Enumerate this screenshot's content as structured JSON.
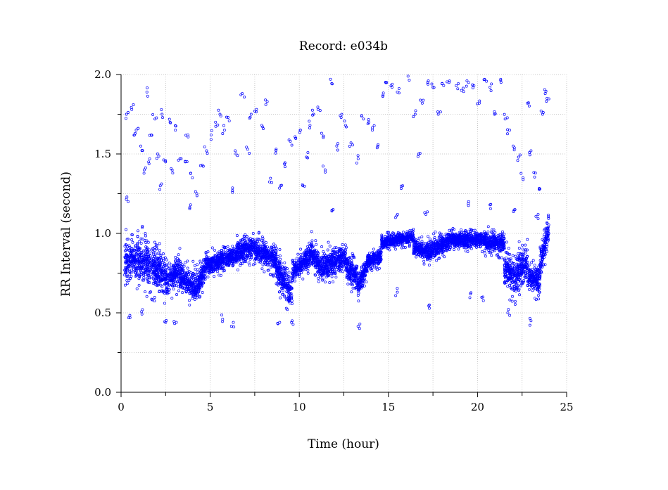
{
  "chart_data": {
    "type": "scatter",
    "title": "Record:  e034b",
    "xlabel": "Time (hour)",
    "ylabel": "RR Interval (second)",
    "xlim": [
      0,
      25
    ],
    "ylim": [
      0,
      2.0
    ],
    "x_ticks": [
      "0",
      "5",
      "10",
      "15",
      "20",
      "25"
    ],
    "y_ticks": [
      "0.0",
      "0.5",
      "1.0",
      "1.5",
      "2.0"
    ],
    "grid": true,
    "marker_color": "#0000ff",
    "segments": [
      {
        "x": [
          0.2,
          1.0
        ],
        "y": [
          0.84,
          0.84
        ],
        "spread": 0.1
      },
      {
        "x": [
          1.0,
          2.0
        ],
        "y": [
          0.84,
          0.78
        ],
        "spread": 0.11
      },
      {
        "x": [
          2.0,
          2.7
        ],
        "y": [
          0.78,
          0.7
        ],
        "spread": 0.09
      },
      {
        "x": [
          2.7,
          3.3
        ],
        "y": [
          0.72,
          0.78
        ],
        "spread": 0.08
      },
      {
        "x": [
          3.3,
          4.2
        ],
        "y": [
          0.74,
          0.66
        ],
        "spread": 0.08
      },
      {
        "x": [
          4.2,
          4.8
        ],
        "y": [
          0.66,
          0.8
        ],
        "spread": 0.07
      },
      {
        "x": [
          4.8,
          6.5
        ],
        "y": [
          0.8,
          0.86
        ],
        "spread": 0.05
      },
      {
        "x": [
          6.5,
          7.5
        ],
        "y": [
          0.88,
          0.92
        ],
        "spread": 0.06
      },
      {
        "x": [
          7.5,
          8.7
        ],
        "y": [
          0.9,
          0.84
        ],
        "spread": 0.06
      },
      {
        "x": [
          8.7,
          9.6
        ],
        "y": [
          0.78,
          0.62
        ],
        "spread": 0.08
      },
      {
        "x": [
          9.6,
          10.6
        ],
        "y": [
          0.76,
          0.86
        ],
        "spread": 0.06
      },
      {
        "x": [
          10.6,
          11.4
        ],
        "y": [
          0.9,
          0.76
        ],
        "spread": 0.07
      },
      {
        "x": [
          11.4,
          12.6
        ],
        "y": [
          0.8,
          0.84
        ],
        "spread": 0.07
      },
      {
        "x": [
          12.6,
          13.3
        ],
        "y": [
          0.8,
          0.72
        ],
        "spread": 0.07
      },
      {
        "x": [
          13.3,
          13.8
        ],
        "y": [
          0.66,
          0.8
        ],
        "spread": 0.05
      },
      {
        "x": [
          13.8,
          14.6
        ],
        "y": [
          0.82,
          0.86
        ],
        "spread": 0.04
      },
      {
        "x": [
          14.6,
          16.4
        ],
        "y": [
          0.94,
          0.98
        ],
        "spread": 0.03
      },
      {
        "x": [
          16.4,
          17.4
        ],
        "y": [
          0.92,
          0.88
        ],
        "spread": 0.05
      },
      {
        "x": [
          17.4,
          18.6
        ],
        "y": [
          0.9,
          0.96
        ],
        "spread": 0.05
      },
      {
        "x": [
          18.6,
          20.4
        ],
        "y": [
          0.96,
          0.96
        ],
        "spread": 0.04
      },
      {
        "x": [
          20.4,
          21.5
        ],
        "y": [
          0.95,
          0.94
        ],
        "spread": 0.05
      },
      {
        "x": [
          21.5,
          22.2
        ],
        "y": [
          0.78,
          0.72
        ],
        "spread": 0.09
      },
      {
        "x": [
          22.2,
          22.8
        ],
        "y": [
          0.76,
          0.82
        ],
        "spread": 0.09
      },
      {
        "x": [
          22.8,
          23.5
        ],
        "y": [
          0.74,
          0.7
        ],
        "spread": 0.07
      },
      {
        "x": [
          23.5,
          24.0
        ],
        "y": [
          0.8,
          1.05
        ],
        "spread": 0.1
      }
    ],
    "outliers": [
      [
        0.3,
        1.75
      ],
      [
        0.6,
        1.78
      ],
      [
        0.75,
        1.62
      ],
      [
        0.85,
        1.65
      ],
      [
        1.1,
        1.55
      ],
      [
        1.3,
        1.4
      ],
      [
        1.45,
        1.89
      ],
      [
        1.55,
        1.45
      ],
      [
        1.7,
        1.62
      ],
      [
        1.9,
        1.72
      ],
      [
        2.05,
        1.5
      ],
      [
        2.2,
        1.3
      ],
      [
        2.3,
        1.75
      ],
      [
        2.5,
        1.45
      ],
      [
        2.75,
        1.7
      ],
      [
        2.9,
        1.38
      ],
      [
        3.05,
        1.65
      ],
      [
        3.3,
        1.47
      ],
      [
        3.6,
        1.45
      ],
      [
        3.75,
        1.62
      ],
      [
        4.0,
        1.35
      ],
      [
        4.25,
        1.25
      ],
      [
        4.55,
        1.43
      ],
      [
        4.8,
        1.52
      ],
      [
        5.05,
        1.62
      ],
      [
        5.3,
        1.7
      ],
      [
        5.55,
        1.75
      ],
      [
        5.8,
        1.65
      ],
      [
        6.0,
        1.73
      ],
      [
        6.25,
        1.27
      ],
      [
        6.45,
        1.5
      ],
      [
        6.8,
        1.88
      ],
      [
        7.1,
        1.53
      ],
      [
        7.3,
        1.75
      ],
      [
        7.6,
        1.78
      ],
      [
        7.9,
        1.68
      ],
      [
        8.1,
        1.84
      ],
      [
        8.45,
        1.32
      ],
      [
        8.7,
        1.53
      ],
      [
        8.95,
        1.3
      ],
      [
        9.2,
        1.42
      ],
      [
        9.5,
        1.58
      ],
      [
        9.8,
        1.6
      ],
      [
        10.05,
        1.65
      ],
      [
        10.2,
        1.3
      ],
      [
        10.4,
        1.48
      ],
      [
        10.6,
        1.68
      ],
      [
        10.8,
        1.75
      ],
      [
        11.05,
        1.78
      ],
      [
        11.25,
        1.63
      ],
      [
        11.45,
        1.4
      ],
      [
        11.75,
        1.97
      ],
      [
        12.1,
        1.55
      ],
      [
        12.35,
        1.73
      ],
      [
        12.6,
        1.68
      ],
      [
        12.9,
        1.57
      ],
      [
        13.3,
        1.47
      ],
      [
        13.6,
        1.72
      ],
      [
        13.85,
        1.69
      ],
      [
        14.1,
        1.65
      ],
      [
        14.4,
        1.55
      ],
      [
        14.7,
        1.87
      ],
      [
        14.9,
        1.95
      ],
      [
        15.2,
        1.92
      ],
      [
        15.5,
        1.89
      ],
      [
        15.8,
        1.3
      ],
      [
        16.1,
        1.99
      ],
      [
        16.5,
        1.75
      ],
      [
        16.7,
        1.5
      ],
      [
        16.9,
        1.82
      ],
      [
        17.2,
        1.95
      ],
      [
        17.5,
        1.92
      ],
      [
        17.8,
        1.75
      ],
      [
        18.1,
        1.93
      ],
      [
        18.4,
        1.95
      ],
      [
        18.8,
        1.93
      ],
      [
        19.1,
        1.9
      ],
      [
        19.5,
        1.95
      ],
      [
        19.8,
        1.93
      ],
      [
        20.1,
        1.82
      ],
      [
        20.4,
        1.97
      ],
      [
        20.7,
        1.92
      ],
      [
        20.95,
        1.75
      ],
      [
        21.3,
        1.97
      ],
      [
        21.55,
        1.72
      ],
      [
        21.8,
        1.65
      ],
      [
        22.0,
        1.55
      ],
      [
        22.3,
        1.48
      ],
      [
        22.55,
        1.35
      ],
      [
        22.8,
        1.82
      ],
      [
        23.0,
        1.52
      ],
      [
        23.25,
        1.38
      ],
      [
        23.5,
        1.28
      ],
      [
        23.65,
        1.75
      ],
      [
        23.8,
        1.88
      ],
      [
        23.9,
        1.85
      ],
      [
        0.5,
        0.47
      ],
      [
        1.2,
        0.52
      ],
      [
        2.5,
        0.44
      ],
      [
        3.1,
        0.44
      ],
      [
        5.7,
        0.46
      ],
      [
        6.3,
        0.44
      ],
      [
        8.9,
        0.44
      ],
      [
        9.6,
        0.45
      ],
      [
        13.4,
        0.43
      ],
      [
        15.5,
        0.63
      ],
      [
        17.3,
        0.55
      ],
      [
        19.6,
        0.62
      ],
      [
        20.3,
        0.6
      ],
      [
        21.7,
        0.5
      ],
      [
        23.0,
        0.45
      ],
      [
        0.4,
        1.2
      ],
      [
        3.9,
        1.18
      ],
      [
        11.9,
        1.15
      ],
      [
        15.4,
        1.1
      ],
      [
        17.1,
        1.12
      ],
      [
        19.5,
        1.2
      ],
      [
        20.7,
        1.18
      ],
      [
        22.1,
        1.15
      ],
      [
        23.4,
        1.12
      ]
    ]
  }
}
